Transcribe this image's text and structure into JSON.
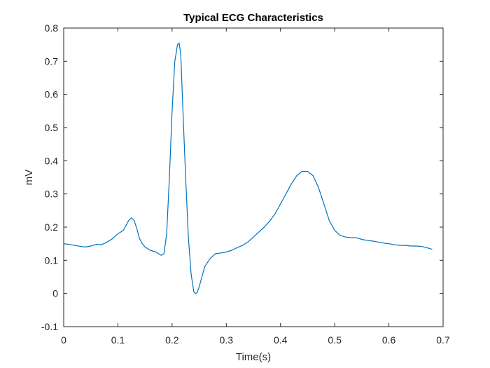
{
  "chart_data": {
    "type": "line",
    "title": "Typical ECG Characteristics",
    "xlabel": "Time(s)",
    "ylabel": "mV",
    "xlim": [
      0,
      0.7
    ],
    "ylim": [
      -0.1,
      0.8
    ],
    "x_ticks": [
      "0",
      "0.1",
      "0.2",
      "0.3",
      "0.4",
      "0.5",
      "0.6",
      "0.7"
    ],
    "y_ticks": [
      "-0.1",
      "0",
      "0.1",
      "0.2",
      "0.3",
      "0.4",
      "0.5",
      "0.6",
      "0.7",
      "0.8"
    ],
    "grid": false,
    "line_color": "#0072BD",
    "series": [
      {
        "x": [
          0,
          0.01,
          0.02,
          0.03,
          0.04,
          0.05,
          0.06,
          0.07,
          0.08,
          0.09,
          0.1,
          0.105,
          0.11,
          0.115,
          0.12,
          0.125,
          0.13,
          0.135,
          0.14,
          0.145,
          0.15,
          0.16,
          0.17,
          0.18,
          0.185,
          0.19,
          0.195,
          0.2,
          0.205,
          0.21,
          0.213,
          0.216,
          0.22,
          0.225,
          0.23,
          0.235,
          0.24,
          0.243,
          0.246,
          0.25,
          0.255,
          0.26,
          0.27,
          0.28,
          0.29,
          0.3,
          0.31,
          0.32,
          0.33,
          0.34,
          0.35,
          0.36,
          0.37,
          0.38,
          0.39,
          0.4,
          0.41,
          0.42,
          0.43,
          0.44,
          0.45,
          0.46,
          0.47,
          0.48,
          0.49,
          0.5,
          0.51,
          0.52,
          0.53,
          0.54,
          0.55,
          0.56,
          0.57,
          0.58,
          0.59,
          0.6,
          0.61,
          0.62,
          0.63,
          0.64,
          0.65,
          0.66,
          0.67,
          0.68
        ],
        "y": [
          0.15,
          0.148,
          0.145,
          0.142,
          0.14,
          0.143,
          0.148,
          0.147,
          0.155,
          0.165,
          0.18,
          0.185,
          0.19,
          0.205,
          0.22,
          0.228,
          0.22,
          0.195,
          0.165,
          0.15,
          0.14,
          0.13,
          0.125,
          0.115,
          0.12,
          0.18,
          0.35,
          0.55,
          0.7,
          0.75,
          0.755,
          0.72,
          0.55,
          0.35,
          0.17,
          0.06,
          0.005,
          0.0,
          0.002,
          0.02,
          0.05,
          0.08,
          0.105,
          0.12,
          0.122,
          0.125,
          0.13,
          0.138,
          0.145,
          0.155,
          0.17,
          0.185,
          0.2,
          0.218,
          0.24,
          0.27,
          0.3,
          0.33,
          0.355,
          0.368,
          0.368,
          0.355,
          0.32,
          0.27,
          0.22,
          0.19,
          0.175,
          0.17,
          0.168,
          0.168,
          0.163,
          0.16,
          0.158,
          0.155,
          0.152,
          0.15,
          0.147,
          0.145,
          0.145,
          0.143,
          0.143,
          0.142,
          0.138,
          0.133
        ]
      }
    ]
  }
}
